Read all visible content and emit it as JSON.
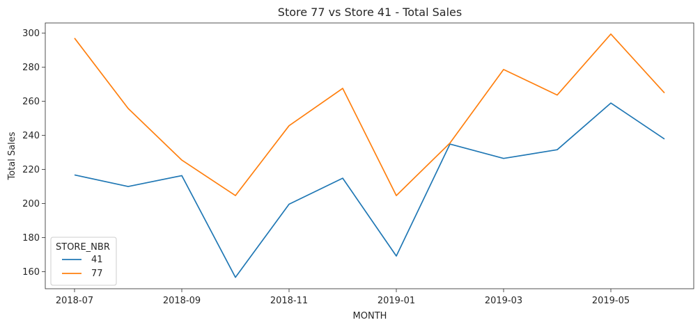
{
  "chart_data": {
    "type": "line",
    "title": "Store 77 vs Store 41 - Total Sales",
    "xlabel": "MONTH",
    "ylabel": "Total Sales",
    "x": [
      "2018-07",
      "2018-08",
      "2018-09",
      "2018-10",
      "2018-11",
      "2018-12",
      "2019-01",
      "2019-02",
      "2019-03",
      "2019-04",
      "2019-05",
      "2019-06"
    ],
    "xticks": [
      "2018-07",
      "2018-09",
      "2018-11",
      "2019-01",
      "2019-03",
      "2019-05"
    ],
    "yticks": [
      160,
      180,
      200,
      220,
      240,
      260,
      280,
      300
    ],
    "ylim": [
      150,
      306
    ],
    "legend_title": "STORE_NBR",
    "legend_position": "lower-left",
    "grid": false,
    "series": [
      {
        "name": "41",
        "color": "#1f77b4",
        "values": [
          216.8,
          210.0,
          216.4,
          156.7,
          199.6,
          214.9,
          169.2,
          234.9,
          226.5,
          231.6,
          259.0,
          237.9
        ]
      },
      {
        "name": "77",
        "color": "#ff7f0e",
        "values": [
          297.1,
          255.8,
          225.5,
          204.7,
          245.7,
          267.6,
          204.7,
          235.5,
          278.7,
          263.7,
          299.5,
          264.9
        ]
      }
    ]
  }
}
